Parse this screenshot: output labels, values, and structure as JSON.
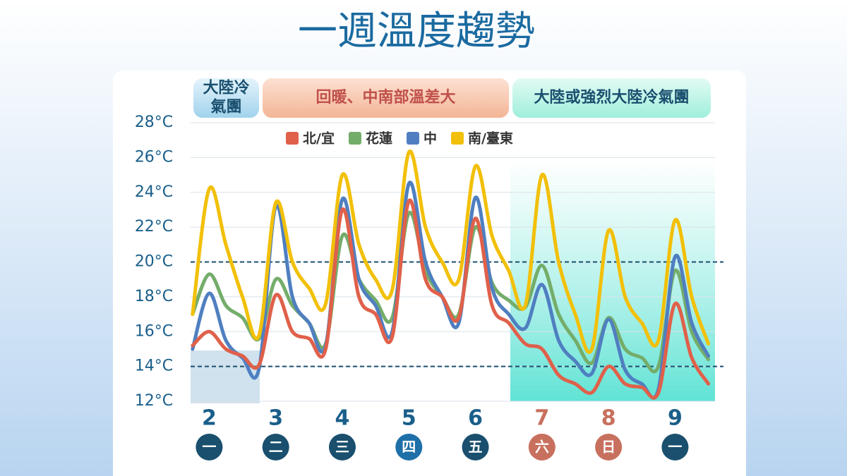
{
  "chart_data": {
    "type": "line",
    "title": "一週溫度趨勢",
    "banners": [
      [
        "大陸冷",
        "氣團"
      ],
      [
        "回暖、中南部溫差大"
      ],
      [
        "大陸或強烈大陸冷氣團"
      ]
    ],
    "x": [
      1.75,
      2,
      2.25,
      2.5,
      2.75,
      3,
      3.25,
      3.5,
      3.75,
      4,
      4.25,
      4.5,
      4.75,
      5,
      5.25,
      5.5,
      5.75,
      6,
      6.25,
      6.5,
      6.75,
      7,
      7.25,
      7.5,
      7.75,
      8,
      8.25,
      8.5,
      8.75,
      9,
      9.25,
      9.5
    ],
    "series": [
      {
        "name": "北/宜",
        "color": "#e0604a",
        "values": [
          15.2,
          16,
          15,
          14.6,
          14.1,
          18.1,
          16,
          15.6,
          15,
          23,
          18,
          17,
          15.7,
          23.5,
          19,
          18,
          16.8,
          22.5,
          17.5,
          16.5,
          15.3,
          15,
          13.5,
          13,
          12.5,
          14,
          13,
          12.8,
          12.5,
          17.6,
          14.5,
          13
        ]
      },
      {
        "name": "花蓮",
        "color": "#74ad6a",
        "values": [
          17,
          19.3,
          17.5,
          16.8,
          15.6,
          19,
          17.5,
          16.5,
          15.3,
          21.5,
          19,
          17.8,
          16.8,
          22.8,
          19.5,
          18,
          17,
          22,
          18.8,
          17.8,
          17.4,
          19.8,
          17,
          15.5,
          14.2,
          16.8,
          15,
          14.5,
          14,
          19.5,
          16,
          14.4
        ]
      },
      {
        "name": "中",
        "color": "#4f7fc0",
        "values": [
          15,
          18.2,
          15.5,
          14.5,
          13.9,
          23.2,
          18,
          16.5,
          15.2,
          23.6,
          19,
          17.5,
          16,
          24.5,
          20,
          18,
          16.5,
          23.7,
          18.5,
          17,
          16.2,
          18.7,
          15.5,
          14.3,
          13.6,
          16.7,
          13.8,
          13,
          12.7,
          20.3,
          16.5,
          14.6
        ]
      },
      {
        "name": "南/臺東",
        "color": "#f2c00a",
        "values": [
          17,
          24.2,
          21,
          18,
          15.8,
          23.4,
          20,
          18.5,
          17.6,
          25,
          21,
          19,
          18.4,
          26.3,
          22,
          20,
          19,
          25.5,
          21.5,
          19.5,
          17.5,
          25,
          20,
          17,
          15,
          21.8,
          18,
          16.5,
          15.5,
          22.4,
          18,
          15.3
        ]
      }
    ],
    "xlim": [
      1.72,
      9.6
    ],
    "xticks": [
      2,
      3,
      4,
      5,
      6,
      7,
      8,
      9
    ],
    "weekdays": [
      "一",
      "二",
      "三",
      "四",
      "五",
      "六",
      "日",
      "一"
    ],
    "ylim": [
      12,
      28
    ],
    "yticks": [
      {
        "value": 12,
        "label": "12°C"
      },
      {
        "value": 14,
        "label": "14°C"
      },
      {
        "value": 16,
        "label": "16°C"
      },
      {
        "value": 18,
        "label": "18°C"
      },
      {
        "value": 20,
        "label": "20°C"
      },
      {
        "value": 22,
        "label": "22°C"
      },
      {
        "value": 24,
        "label": "24°C"
      },
      {
        "value": 26,
        "label": "26°C"
      },
      {
        "value": 28,
        "label": "28°C"
      }
    ],
    "reference_lines": [
      20,
      14
    ],
    "grid": true
  }
}
